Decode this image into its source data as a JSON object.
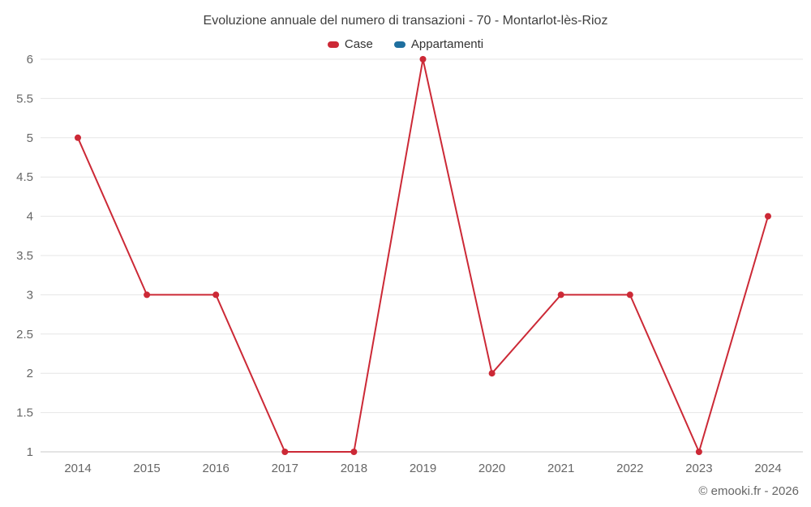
{
  "title": "Evoluzione annuale del numero di transazioni - 70 - Montarlot-lès-Rioz",
  "legend": {
    "items": [
      {
        "label": "Case",
        "color": "#cc2936"
      },
      {
        "label": "Appartamenti",
        "color": "#1f6f9f"
      }
    ]
  },
  "footer": "© emooki.fr - 2026",
  "colors": {
    "grid": "#e6e6e6",
    "axis": "#c9c9c9",
    "tick_text": "#666666",
    "title_text": "#3f3f3f"
  },
  "chart_data": {
    "type": "line",
    "title": "Evoluzione annuale del numero di transazioni - 70 - Montarlot-lès-Rioz",
    "x": [
      "2014",
      "2015",
      "2016",
      "2017",
      "2018",
      "2019",
      "2020",
      "2021",
      "2022",
      "2023",
      "2024"
    ],
    "series": [
      {
        "name": "Case",
        "color": "#cc2936",
        "values": [
          5,
          3,
          3,
          1,
          1,
          6,
          2,
          3,
          3,
          1,
          4
        ]
      },
      {
        "name": "Appartamenti",
        "color": "#1f6f9f",
        "values": []
      }
    ],
    "xlabel": "",
    "ylabel": "",
    "ylim": [
      1,
      6
    ],
    "ytick_step": 0.5,
    "grid": "horizontal",
    "legend_position": "top",
    "marker": "circle",
    "marker_radius": 4
  }
}
